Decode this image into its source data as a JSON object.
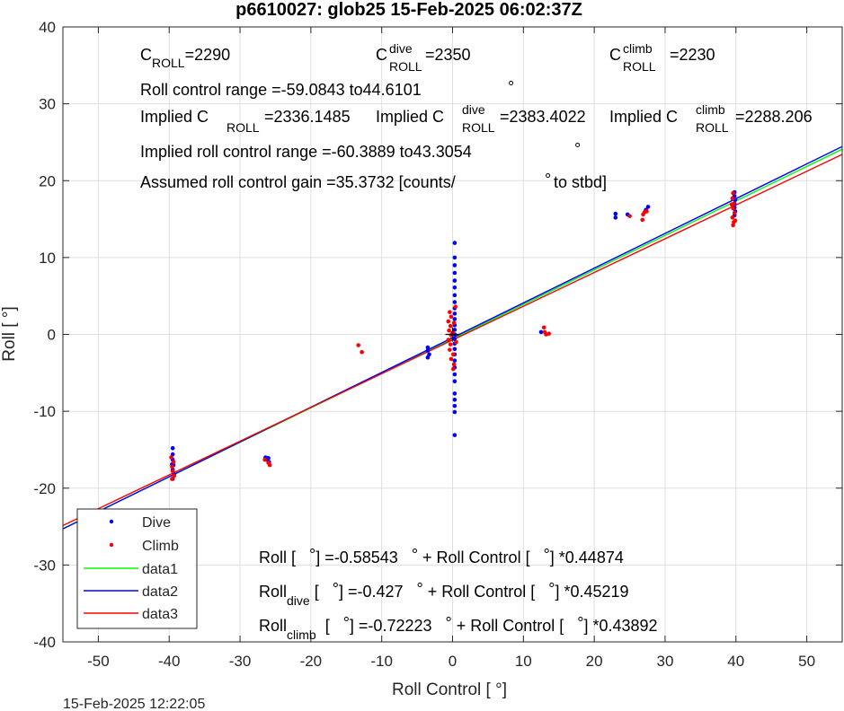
{
  "title": "p6610027: glob25 15-Feb-2025 06:02:37Z",
  "footer_timestamp": "15-Feb-2025 12:22:05",
  "chart_data": {
    "type": "scatter",
    "xlabel": "Roll Control [   °]",
    "ylabel": "Roll [  °]",
    "xlim": [
      -55,
      55
    ],
    "ylim": [
      -40,
      40
    ],
    "xticks": [
      -50,
      -40,
      -30,
      -20,
      -10,
      0,
      10,
      20,
      30,
      40,
      50
    ],
    "yticks": [
      -40,
      -30,
      -20,
      -10,
      0,
      10,
      20,
      30,
      40
    ],
    "grid": true,
    "legend_position": "bottom-left",
    "legend": [
      "Dive",
      "Climb",
      "data1",
      "data2",
      "data3"
    ],
    "series": [
      {
        "name": "Dive",
        "kind": "points",
        "color": "#0000ff",
        "points": [
          [
            -39.5,
            -14.8
          ],
          [
            -39.5,
            -15.6
          ],
          [
            -39.5,
            -16.3
          ],
          [
            -39.4,
            -17.0
          ],
          [
            -39.5,
            -17.6
          ],
          [
            -39.3,
            -18.2
          ],
          [
            -39.5,
            -18.8
          ],
          [
            -39.6,
            -16.9
          ],
          [
            -26.4,
            -16.0
          ],
          [
            -26.0,
            -16.1
          ],
          [
            -25.9,
            -16.6
          ],
          [
            -26.2,
            -16.3
          ],
          [
            -3.5,
            -1.7
          ],
          [
            -3.5,
            -2.1
          ],
          [
            -3.3,
            -2.6
          ],
          [
            -3.5,
            -3.0
          ],
          [
            0.3,
            11.9
          ],
          [
            0.3,
            10.0
          ],
          [
            0.3,
            9.0
          ],
          [
            0.3,
            8.0
          ],
          [
            0.3,
            7.0
          ],
          [
            0.3,
            6.1
          ],
          [
            0.3,
            5.1
          ],
          [
            0.3,
            4.2
          ],
          [
            0.3,
            3.4
          ],
          [
            0.3,
            2.7
          ],
          [
            0.3,
            2.0
          ],
          [
            0.3,
            1.2
          ],
          [
            0.3,
            0.6
          ],
          [
            0.3,
            0.0
          ],
          [
            0.3,
            -0.6
          ],
          [
            0.3,
            -1.2
          ],
          [
            0.3,
            -1.9
          ],
          [
            0.3,
            -2.6
          ],
          [
            0.3,
            -3.4
          ],
          [
            0.3,
            -4.3
          ],
          [
            0.3,
            -5.2
          ],
          [
            0.3,
            -6.1
          ],
          [
            0.3,
            -7.7
          ],
          [
            0.3,
            -8.5
          ],
          [
            0.3,
            -9.3
          ],
          [
            0.3,
            -10.1
          ],
          [
            0.3,
            -13.1
          ],
          [
            12.5,
            0.3
          ],
          [
            23.0,
            15.7
          ],
          [
            23.0,
            15.2
          ],
          [
            24.7,
            15.6
          ],
          [
            27.3,
            16.2
          ],
          [
            27.6,
            16.6
          ],
          [
            39.8,
            18.5
          ],
          [
            39.8,
            18.0
          ],
          [
            39.9,
            17.5
          ],
          [
            39.8,
            17.0
          ],
          [
            39.8,
            16.5
          ],
          [
            39.9,
            16.0
          ],
          [
            39.8,
            15.5
          ]
        ]
      },
      {
        "name": "Climb",
        "kind": "points",
        "color": "#ff0000",
        "points": [
          [
            -39.7,
            -16.0
          ],
          [
            -39.4,
            -16.6
          ],
          [
            -39.6,
            -17.2
          ],
          [
            -39.5,
            -17.8
          ],
          [
            -39.3,
            -18.4
          ],
          [
            -39.6,
            -18.8
          ],
          [
            -26.5,
            -16.3
          ],
          [
            -25.8,
            -17.0
          ],
          [
            -26.0,
            -16.7
          ],
          [
            -13.3,
            -1.4
          ],
          [
            -12.8,
            -2.3
          ],
          [
            -0.4,
            2.9
          ],
          [
            -0.2,
            2.3
          ],
          [
            -0.6,
            1.7
          ],
          [
            -0.3,
            1.1
          ],
          [
            -0.5,
            0.5
          ],
          [
            -0.2,
            -0.1
          ],
          [
            -0.6,
            -0.7
          ],
          [
            -0.3,
            -1.3
          ],
          [
            -0.4,
            -2.0
          ],
          [
            0.1,
            -2.6
          ],
          [
            -0.2,
            -3.2
          ],
          [
            0.2,
            -3.9
          ],
          [
            0.1,
            -4.5
          ],
          [
            0.4,
            3.6
          ],
          [
            0.2,
            1.5
          ],
          [
            0.0,
            0.2
          ],
          [
            0.5,
            -1.0
          ],
          [
            12.9,
            0.9
          ],
          [
            13.2,
            0.0
          ],
          [
            13.6,
            0.1
          ],
          [
            13.0,
            0.3
          ],
          [
            26.8,
            14.9
          ],
          [
            26.9,
            15.6
          ],
          [
            27.1,
            15.9
          ],
          [
            27.4,
            16.0
          ],
          [
            25.0,
            15.4
          ],
          [
            39.6,
            18.4
          ],
          [
            39.5,
            17.7
          ],
          [
            39.7,
            17.0
          ],
          [
            39.6,
            16.4
          ],
          [
            39.8,
            15.8
          ],
          [
            39.5,
            15.2
          ],
          [
            39.7,
            14.6
          ],
          [
            39.6,
            14.2
          ],
          [
            39.9,
            14.8
          ],
          [
            39.4,
            16.9
          ]
        ]
      },
      {
        "name": "data1",
        "kind": "line",
        "color": "#00ff00",
        "intercept": -0.58543,
        "slope": 0.44874
      },
      {
        "name": "data2",
        "kind": "line",
        "color": "#0000ff",
        "intercept": -0.427,
        "slope": 0.45219
      },
      {
        "name": "data3",
        "kind": "line",
        "color": "#ff0000",
        "intercept": -0.72223,
        "slope": 0.43892
      }
    ],
    "origin_marker": "+",
    "annotations": {
      "c_roll": {
        "prefix": "C",
        "sub": "ROLL",
        "value": "=2290"
      },
      "c_roll_dive": {
        "prefix": "C",
        "sup": "dive",
        "sub": "ROLL",
        "value": " =2350"
      },
      "c_roll_climb": {
        "prefix": "C",
        "sup": "climb",
        "sub": "ROLL",
        "value": " =2230"
      },
      "roll_control_range": "Roll control range =-59.0843 to44.6101",
      "implied_c_roll": {
        "prefix": "Implied C",
        "sub": "ROLL",
        "value": " =2336.1485"
      },
      "implied_c_roll_dive": {
        "prefix": "Implied C",
        "sup": "dive",
        "sub": "ROLL",
        "value": " =2383.4022"
      },
      "implied_c_roll_climb": {
        "prefix": "Implied C",
        "sup": "climb",
        "sub": "ROLL",
        "value": " =2288.206"
      },
      "implied_roll_control_range": "Implied roll control range =-60.3889 to43.3054",
      "assumed_gain_prefix": "Assumed roll control gain =35.3732 [counts/",
      "assumed_gain_suffix": " to stbd]",
      "fit_all": {
        "p1": "Roll [   ",
        "p2": "] =-0.58543",
        "p3": " + Roll Control [   ",
        "p4": "] *0.44874"
      },
      "fit_dive": {
        "prefix": "Roll",
        "sub": "dive",
        "p1": "[   ",
        "p2": "] =-0.427",
        "p3": " + Roll Control [   ",
        "p4": "] *0.45219"
      },
      "fit_climb": {
        "prefix": "Roll",
        "sub": "climb",
        "p1": "[   ",
        "p2": "] =-0.72223",
        "p3": " + Roll Control [   ",
        "p4": "] *0.43892"
      },
      "degree_symbol": "°"
    }
  }
}
